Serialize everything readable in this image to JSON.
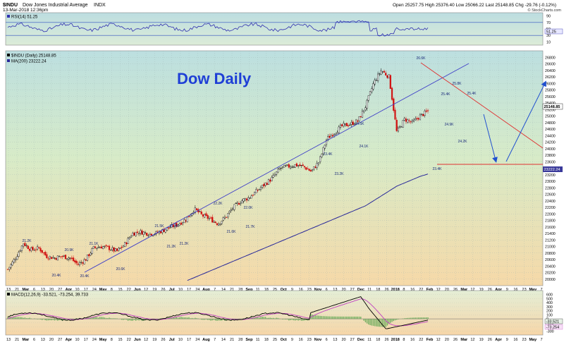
{
  "header": {
    "symbol": "$INDU",
    "name": "Dow Jones Industrial Average",
    "exchange": "INDX",
    "date": "13-Mar-2018 12:36pm",
    "quote": "Open 25257.75  High 25376.40  Low 25066.22  Last 25148.85  Chg -29.76 (-0.12%)",
    "credit": "© StockCharts.com"
  },
  "overlay_title": "Dow Daily",
  "colors": {
    "up": "#000000",
    "down": "#d11010",
    "ma": "#2a2a9a",
    "trend": "#4040c8",
    "resistance": "#e03030",
    "arrow": "#2050d0",
    "rsi": "#3030b0",
    "macd": "#000000",
    "signal": "#c040c0",
    "hist": "#3a9a3a"
  },
  "rsi": {
    "label": "RSI(14) 51.25",
    "value_tag": "51.25",
    "ticks": [
      "90",
      "70",
      "50",
      "30",
      "10"
    ],
    "ylim": [
      0,
      100
    ],
    "levels": [
      70,
      30
    ]
  },
  "price": {
    "label": "$INDU (Daily) 25148.85",
    "ma_label": "MA(200) 23222.24",
    "last_tag": "25148.85",
    "ma_tag": "23222.24",
    "ylim": [
      19800,
      27000
    ],
    "ticks": [
      "26800",
      "26600",
      "26400",
      "26200",
      "26000",
      "25800",
      "25600",
      "25400",
      "25200",
      "25000",
      "24800",
      "24600",
      "24400",
      "24200",
      "24000",
      "23800",
      "23600",
      "23400",
      "23200",
      "23000",
      "22800",
      "22600",
      "22400",
      "22200",
      "22000",
      "21800",
      "21600",
      "21400",
      "21200",
      "21000",
      "20800",
      "20600",
      "20400",
      "20200",
      "20000"
    ]
  },
  "macd": {
    "label": "MACD(12,26,9) -33.521, -73.254, 39.733",
    "tags": [
      "-33.521",
      "-73.254"
    ],
    "ticks": [
      "600",
      "500",
      "400",
      "300",
      "200",
      "100",
      "0",
      "-100",
      "-200",
      "-300"
    ],
    "ylim": [
      -400,
      700
    ]
  },
  "x_axis": {
    "labels": [
      "13",
      "21",
      "Mar",
      "6",
      "13",
      "20",
      "27",
      "Apr",
      "10",
      "17",
      "24",
      "May",
      "8",
      "15",
      "22",
      "Jun",
      "12",
      "19",
      "26",
      "Jul",
      "10",
      "17",
      "24",
      "Aug",
      "7",
      "14",
      "21",
      "28",
      "Sep",
      "11",
      "18",
      "25",
      "Oct",
      "9",
      "16",
      "23",
      "Nov",
      "6",
      "13",
      "20",
      "27",
      "Dec",
      "11",
      "18",
      "26",
      "2018",
      "8",
      "16",
      "22",
      "Feb",
      "12",
      "20",
      "26",
      "Mar",
      "12",
      "19",
      "26",
      "Apr",
      "9",
      "16",
      "23",
      "May",
      "7"
    ]
  },
  "chart_data": {
    "type": "line",
    "title": "Dow Daily",
    "ylabel": "",
    "xlabel": "",
    "ylim": [
      19800,
      27000
    ],
    "x": [
      "Feb-13",
      "Feb-21",
      "Mar-1",
      "Mar-6",
      "Mar-13",
      "Mar-20",
      "Mar-27",
      "Apr-3",
      "Apr-10",
      "Apr-17",
      "Apr-24",
      "May-1",
      "May-8",
      "May-15",
      "May-22",
      "Jun-1",
      "Jun-12",
      "Jun-19",
      "Jun-26",
      "Jul-3",
      "Jul-10",
      "Jul-17",
      "Jul-24",
      "Aug-1",
      "Aug-7",
      "Aug-14",
      "Aug-21",
      "Aug-28",
      "Sep-5",
      "Sep-11",
      "Sep-18",
      "Sep-25",
      "Oct-2",
      "Oct-9",
      "Oct-16",
      "Oct-23",
      "Nov-1",
      "Nov-6",
      "Nov-13",
      "Nov-20",
      "Nov-27",
      "Dec-1",
      "Dec-11",
      "Dec-18",
      "Dec-26",
      "Jan-2",
      "Jan-8",
      "Jan-16",
      "Jan-22",
      "Feb-1",
      "Feb-12",
      "Feb-20",
      "Feb-26",
      "Mar-1",
      "Mar-12"
    ],
    "series": [
      {
        "name": "$INDU (Daily)",
        "values": [
          20300,
          20650,
          21100,
          20900,
          20950,
          20700,
          20650,
          20700,
          20650,
          20450,
          20600,
          20950,
          21000,
          20950,
          20850,
          21050,
          21400,
          21450,
          21400,
          21400,
          21500,
          21600,
          21700,
          21850,
          22150,
          21950,
          21850,
          21700,
          21900,
          22200,
          22400,
          22500,
          22700,
          22900,
          23100,
          23400,
          23450,
          23500,
          23450,
          23300,
          23600,
          24300,
          24500,
          24700,
          24750,
          24850,
          25300,
          26000,
          26400,
          26200,
          24500,
          24900,
          24800,
          25000,
          25148.85
        ]
      },
      {
        "name": "MA(200)",
        "values": [
          null,
          null,
          null,
          null,
          null,
          null,
          null,
          null,
          null,
          null,
          null,
          null,
          null,
          null,
          null,
          null,
          null,
          null,
          null,
          null,
          null,
          null,
          null,
          19950,
          20050,
          20150,
          20250,
          20350,
          20450,
          20550,
          20650,
          20750,
          20850,
          20950,
          21050,
          21150,
          21250,
          21350,
          21450,
          21550,
          21650,
          21750,
          21850,
          21950,
          22050,
          22150,
          22250,
          22400,
          22550,
          22700,
          22850,
          22950,
          23050,
          23150,
          23222.24
        ]
      }
    ],
    "annotations": [
      "21.2K",
      "20.9K",
      "20.4K",
      "20.4K",
      "21.1K",
      "20.6K",
      "21.5K",
      "21.4K",
      "21.2K",
      "21.2K",
      "22.2K",
      "21.6K",
      "22.0K",
      "21.7K",
      "23.4K",
      "23.2K",
      "24.5K",
      "24.1K",
      "26.6K",
      "23.4K",
      "25.8K",
      "25.4K",
      "24.9K",
      "24.2K",
      "25.4K"
    ],
    "drawings": [
      "rising trendline",
      "falling resistance line",
      "support line 23400",
      "projected down arrow",
      "projected up arrow"
    ],
    "grid": true
  }
}
